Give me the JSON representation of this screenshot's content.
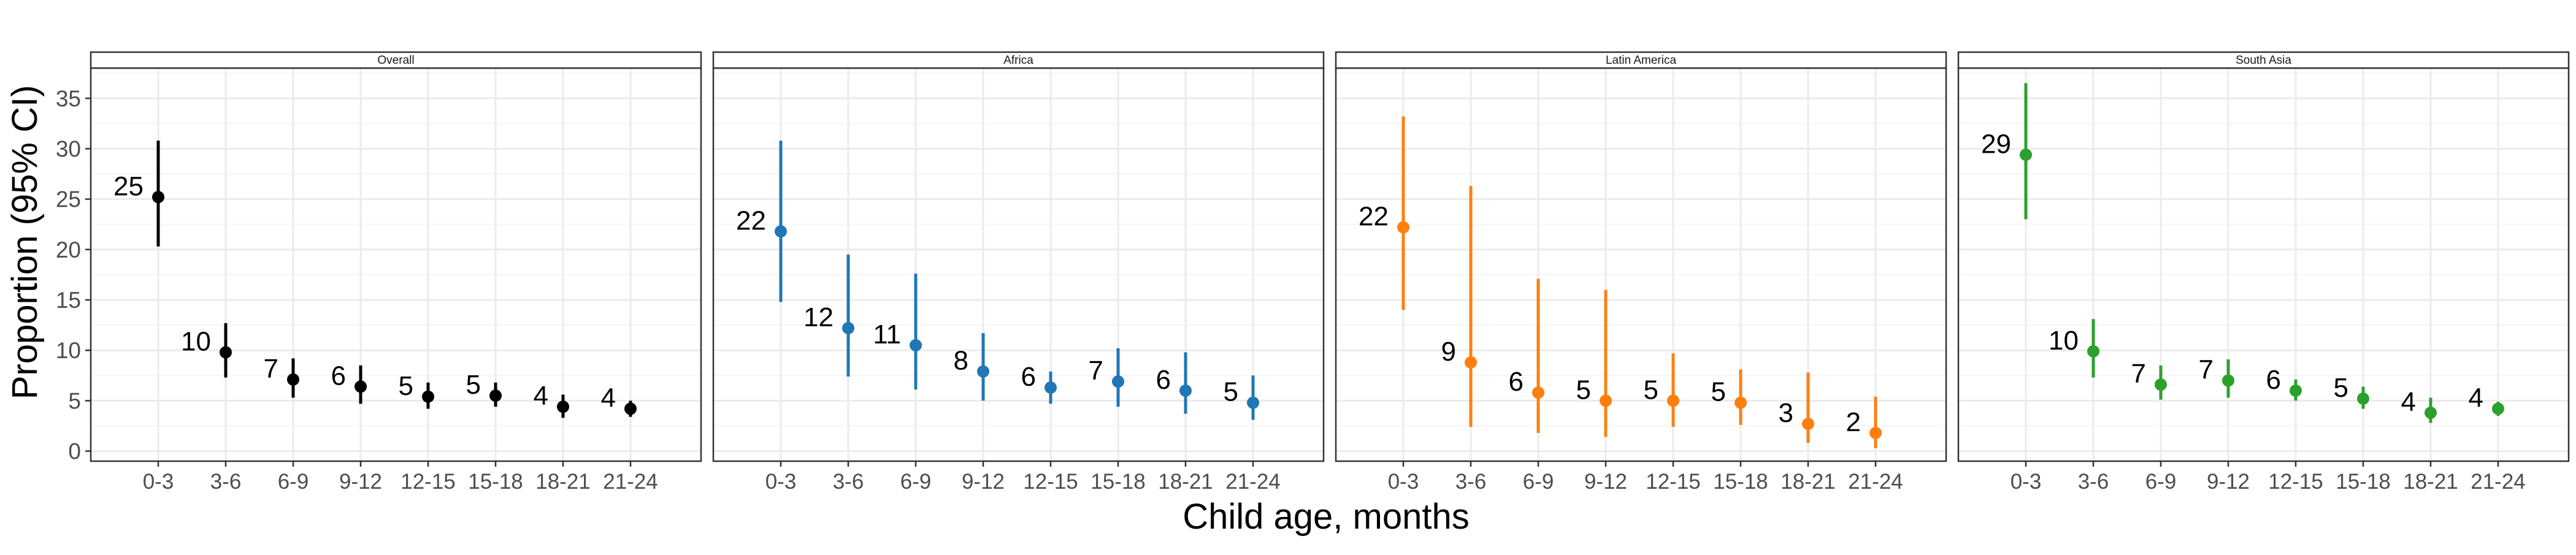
{
  "figure": {
    "ylabel": "Proportion (95% CI)",
    "xlabel": "Child age, months"
  },
  "colors": {
    "Overall": "#000000",
    "Africa": "#1f77b4",
    "Latin America": "#ff7f0e",
    "South Asia": "#2ca02c",
    "panel_background": "#ffffff",
    "grid_major": "#ebebeb",
    "grid_minor": "#f5f5f5",
    "axis_text": "#4d4d4d"
  },
  "chart_data": [
    {
      "type": "scatter",
      "title": "Overall",
      "categories": [
        "0-3",
        "3-6",
        "6-9",
        "9-12",
        "12-15",
        "15-18",
        "18-21",
        "21-24"
      ],
      "series": [
        {
          "values": [
            25.2,
            9.8,
            7.1,
            6.4,
            5.4,
            5.5,
            4.4,
            4.2
          ],
          "ci_lower": [
            20.3,
            7.3,
            5.3,
            4.7,
            4.2,
            4.4,
            3.3,
            3.4
          ],
          "ci_upper": [
            30.8,
            12.7,
            9.2,
            8.5,
            6.8,
            6.8,
            5.6,
            5.0
          ],
          "labels": [
            "25",
            "10",
            "7",
            "6",
            "5",
            "5",
            "4",
            "4"
          ]
        }
      ],
      "ylabel": "Proportion (95% CI)",
      "ylim": [
        -1,
        38
      ],
      "yticks": [
        0,
        5,
        10,
        15,
        20,
        25,
        30,
        35
      ],
      "grid": true
    },
    {
      "type": "scatter",
      "title": "Africa",
      "categories": [
        "0-3",
        "3-6",
        "6-9",
        "9-12",
        "12-15",
        "15-18",
        "18-21",
        "21-24"
      ],
      "series": [
        {
          "values": [
            21.8,
            12.2,
            10.5,
            7.9,
            6.3,
            6.9,
            6.0,
            4.8
          ],
          "ci_lower": [
            14.8,
            7.4,
            6.1,
            5.0,
            4.7,
            4.4,
            3.7,
            3.1
          ],
          "ci_upper": [
            30.8,
            19.5,
            17.6,
            11.7,
            7.9,
            10.2,
            9.8,
            7.5
          ],
          "labels": [
            "22",
            "12",
            "11",
            "8",
            "6",
            "7",
            "6",
            "5"
          ]
        }
      ],
      "ylim": [
        -1,
        38
      ],
      "grid": true
    },
    {
      "type": "scatter",
      "title": "Latin America",
      "categories": [
        "0-3",
        "3-6",
        "6-9",
        "9-12",
        "12-15",
        "15-18",
        "18-21",
        "21-24"
      ],
      "series": [
        {
          "values": [
            22.2,
            8.8,
            5.8,
            5.0,
            5.0,
            4.8,
            2.7,
            1.8
          ],
          "ci_lower": [
            14.0,
            2.4,
            1.8,
            1.4,
            2.4,
            2.6,
            0.8,
            0.3
          ],
          "ci_upper": [
            33.2,
            26.3,
            17.1,
            16.0,
            9.7,
            8.1,
            7.8,
            5.4
          ],
          "labels": [
            "22",
            "9",
            "6",
            "5",
            "5",
            "5",
            "3",
            "2"
          ]
        }
      ],
      "ylim": [
        -1,
        38
      ],
      "grid": true
    },
    {
      "type": "scatter",
      "title": "South Asia",
      "categories": [
        "0-3",
        "3-6",
        "6-9",
        "9-12",
        "12-15",
        "15-18",
        "18-21",
        "21-24"
      ],
      "series": [
        {
          "values": [
            29.4,
            9.9,
            6.6,
            7.0,
            6.0,
            5.2,
            3.8,
            4.2
          ],
          "ci_lower": [
            23.0,
            7.3,
            5.1,
            5.3,
            5.0,
            4.2,
            2.8,
            3.5
          ],
          "ci_upper": [
            36.5,
            13.1,
            8.5,
            9.1,
            7.1,
            6.4,
            5.3,
            4.9
          ],
          "labels": [
            "29",
            "10",
            "7",
            "7",
            "6",
            "5",
            "4",
            "4"
          ]
        }
      ],
      "ylim": [
        -1,
        38
      ],
      "grid": true
    }
  ]
}
